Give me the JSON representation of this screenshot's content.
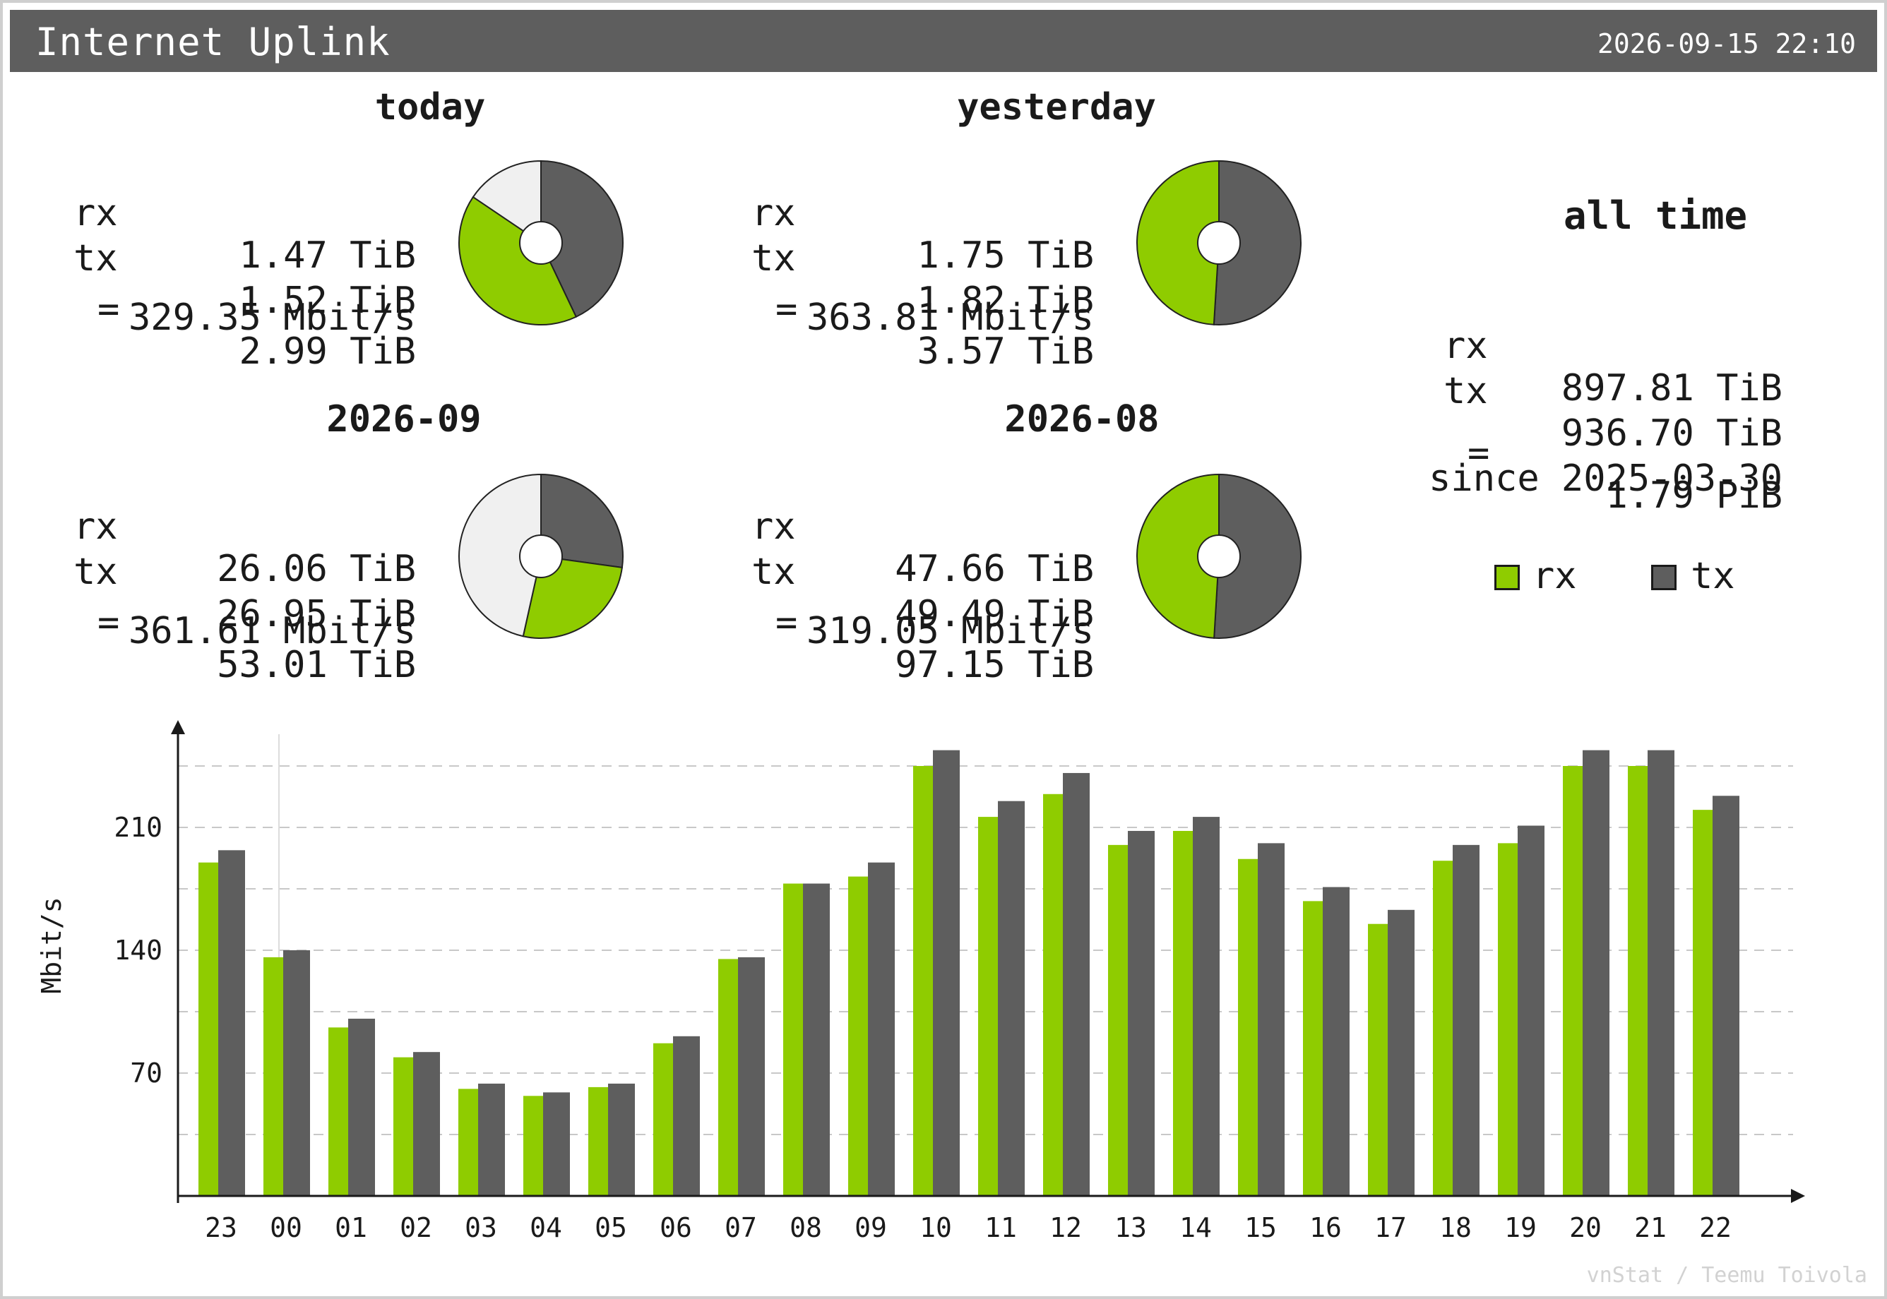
{
  "header": {
    "title": "Internet Uplink",
    "timestamp": "2026-09-15 22:10"
  },
  "summaries": [
    {
      "title": "today",
      "rx_label": "rx",
      "rx": "1.47 TiB",
      "tx_label": "tx",
      "tx": "1.52 TiB",
      "eq_label": "=",
      "total": "2.99 TiB",
      "rate": "329.35 Mbit/s",
      "pie": {
        "rx": 1.47,
        "tx": 1.52,
        "remaining": 0.55
      }
    },
    {
      "title": "yesterday",
      "rx_label": "rx",
      "rx": "1.75 TiB",
      "tx_label": "tx",
      "tx": "1.82 TiB",
      "eq_label": "=",
      "total": "3.57 TiB",
      "rate": "363.81 Mbit/s",
      "pie": {
        "rx": 1.75,
        "tx": 1.82,
        "remaining": 0
      }
    },
    {
      "title": "2026-09",
      "rx_label": "rx",
      "rx": "26.06 TiB",
      "tx_label": "tx",
      "tx": "26.95 TiB",
      "eq_label": "=",
      "total": "53.01 TiB",
      "rate": "361.61 Mbit/s",
      "pie": {
        "rx": 26.06,
        "tx": 26.95,
        "remaining": 46.1
      }
    },
    {
      "title": "2026-08",
      "rx_label": "rx",
      "rx": "47.66 TiB",
      "tx_label": "tx",
      "tx": "49.49 TiB",
      "eq_label": "=",
      "total": "97.15 TiB",
      "rate": "319.05 Mbit/s",
      "pie": {
        "rx": 47.66,
        "tx": 49.49,
        "remaining": 0
      }
    }
  ],
  "all_time": {
    "title": "all time",
    "rx_label": "rx",
    "rx": "897.81 TiB",
    "tx_label": "tx",
    "tx": "936.70 TiB",
    "eq_label": "=",
    "total": "1.79 PiB",
    "since": "since 2025-03-30"
  },
  "legend": {
    "rx": "rx",
    "tx": "tx"
  },
  "colors": {
    "rx": "#8fcc00",
    "tx": "#5e5e5e",
    "remaining": "#f0f0f0",
    "header": "#5e5e5e",
    "grid": "#c8c8c8"
  },
  "credit": "vnStat / Teemu Toivola",
  "chart_data": {
    "type": "bar",
    "ylabel": "Mbit/s",
    "xlabel": "",
    "categories": [
      "23",
      "00",
      "01",
      "02",
      "03",
      "04",
      "05",
      "06",
      "07",
      "08",
      "09",
      "10",
      "11",
      "12",
      "13",
      "14",
      "15",
      "16",
      "17",
      "18",
      "19",
      "20",
      "21",
      "22"
    ],
    "series": [
      {
        "name": "rx",
        "values": [
          190,
          136,
          96,
          79,
          61,
          57,
          62,
          87,
          135,
          178,
          182,
          245,
          216,
          229,
          200,
          208,
          192,
          168,
          155,
          191,
          201,
          245,
          245,
          220
        ]
      },
      {
        "name": "tx",
        "values": [
          197,
          140,
          101,
          82,
          64,
          59,
          64,
          91,
          136,
          178,
          190,
          254,
          225,
          241,
          208,
          216,
          201,
          176,
          163,
          200,
          211,
          254,
          254,
          228
        ]
      }
    ],
    "yticks": [
      70,
      140,
      210
    ],
    "ylim": [
      0,
      262
    ],
    "grid": true,
    "legend": "right"
  }
}
